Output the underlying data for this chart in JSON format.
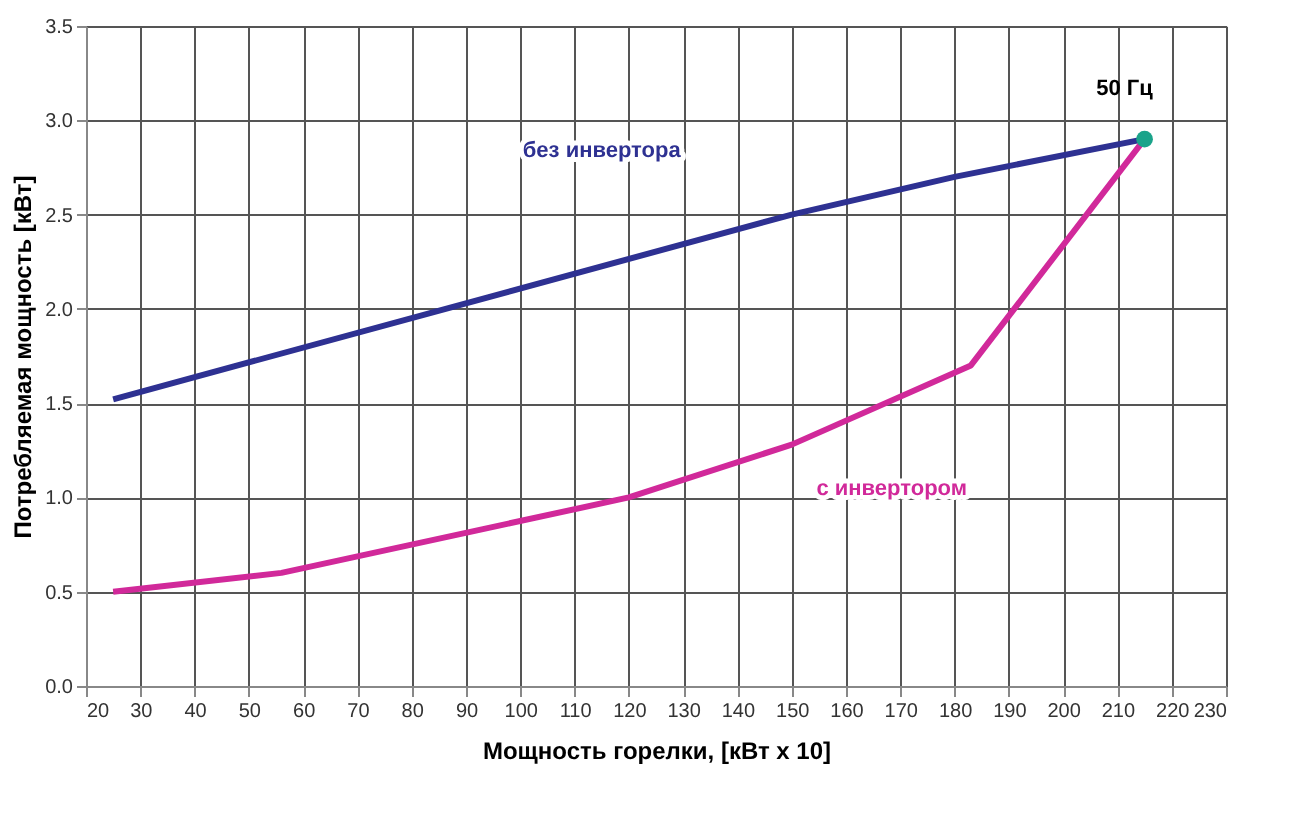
{
  "chart_data": {
    "type": "line",
    "xlabel": "Мощность горелки, [кВт x 10]",
    "ylabel": "Потребляемая мощность [кВт]",
    "series": [
      {
        "name": "без инвертора",
        "color": "#2e3192",
        "x": [
          25,
          150,
          180,
          215
        ],
        "values": [
          1.52,
          2.5,
          2.7,
          2.9
        ]
      },
      {
        "name": "с инвертором",
        "color": "#d1299a",
        "x": [
          25,
          56,
          120,
          150,
          183,
          215
        ],
        "values": [
          0.5,
          0.6,
          1.0,
          1.28,
          1.7,
          2.9
        ]
      },
      {
        "type": "scatter",
        "marker": "circle",
        "color": "#1aa38a",
        "x": [
          215
        ],
        "values": [
          2.9
        ]
      }
    ],
    "annotations": [
      {
        "text": "50 Гц",
        "x": 215,
        "y": 2.9
      }
    ],
    "xlim": [
      20,
      230
    ],
    "xticks": [
      20,
      30,
      40,
      50,
      60,
      70,
      80,
      90,
      100,
      110,
      120,
      130,
      140,
      150,
      160,
      170,
      180,
      190,
      200,
      210,
      220,
      230
    ],
    "ylim": [
      0,
      3.5
    ],
    "yticks": [
      {
        "value": 0,
        "label": "0.0"
      },
      0.5,
      {
        "value": 1,
        "label": "1.0"
      },
      1.5,
      {
        "value": 2,
        "label": "2.0"
      },
      2.5,
      {
        "value": 3,
        "label": "3.0"
      },
      3.5
    ],
    "grid": true,
    "line_style": "solid"
  }
}
